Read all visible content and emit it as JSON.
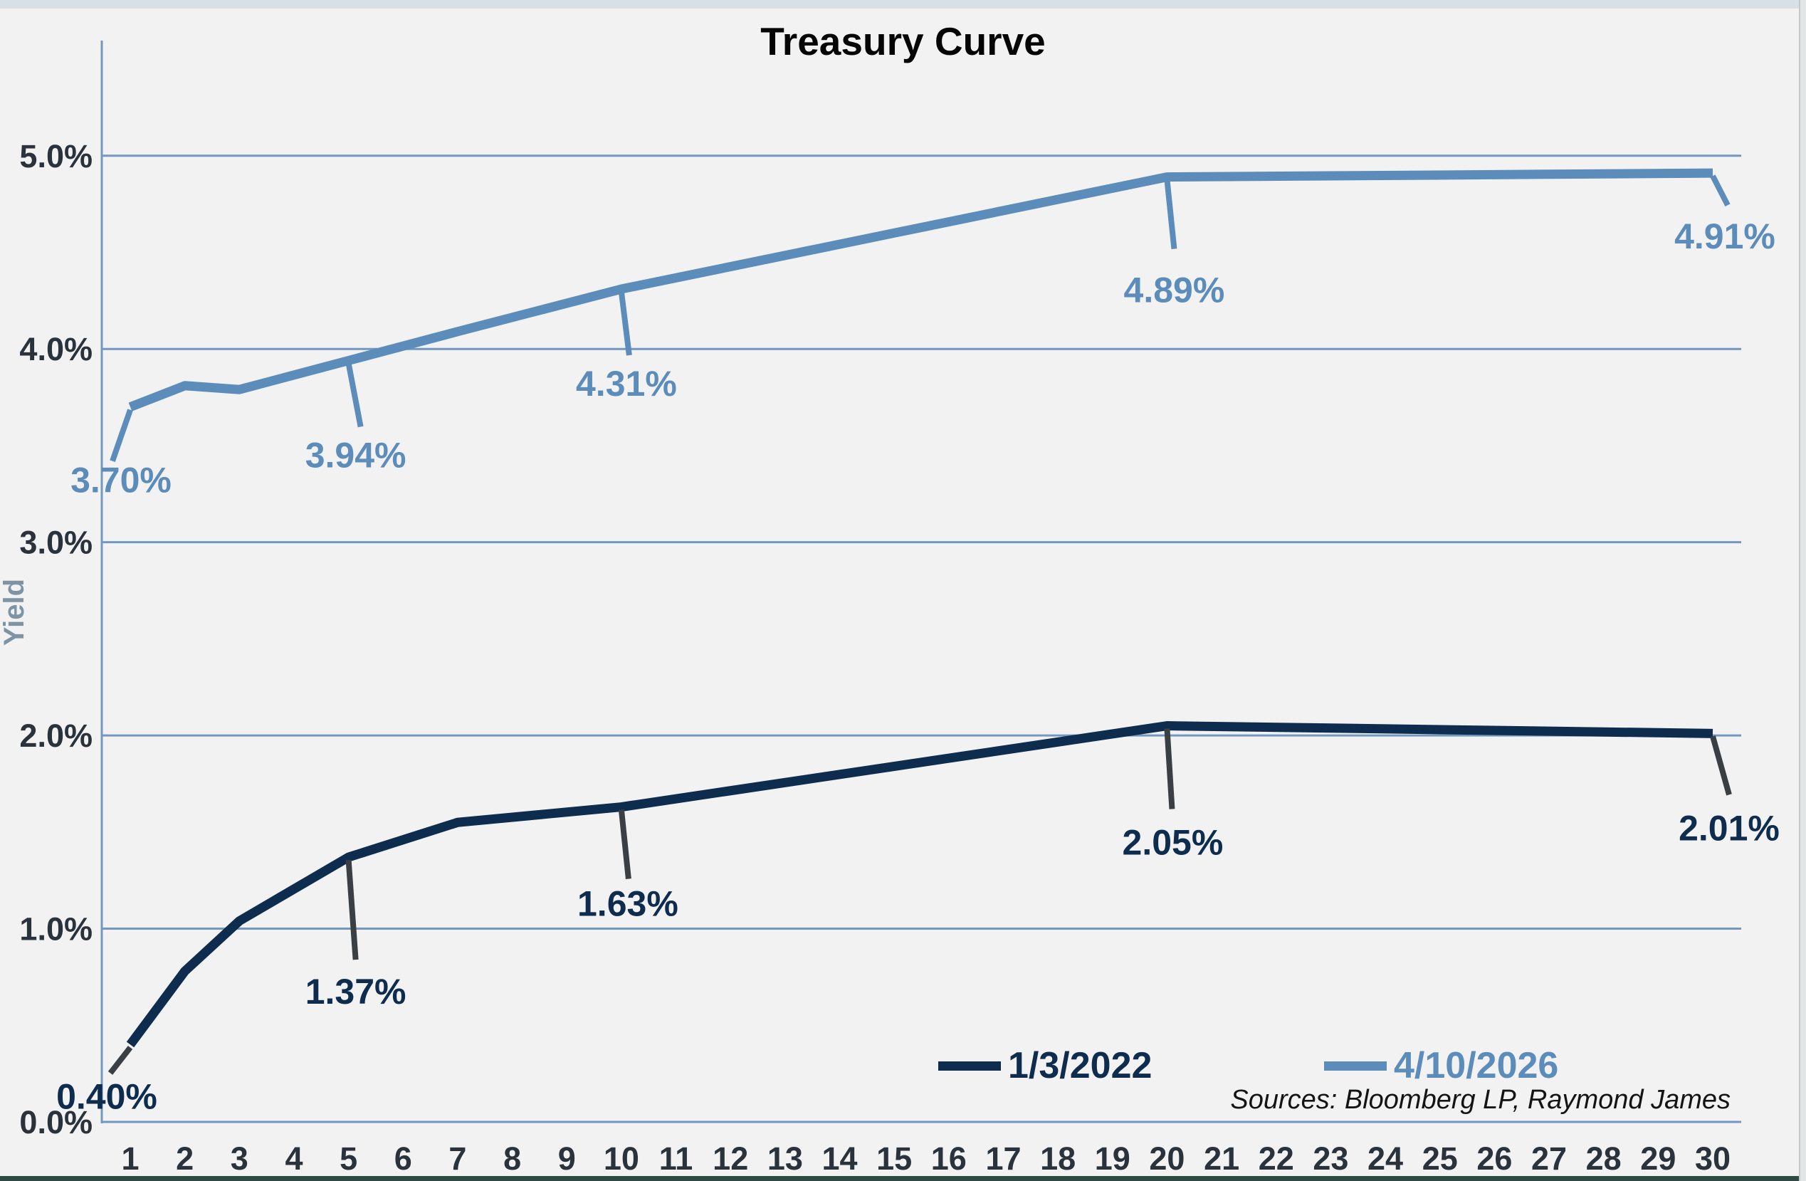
{
  "title": "Treasury Curve",
  "y_axis": {
    "label": "Yield",
    "ticks": [
      {
        "v": 0,
        "label": "0.0%"
      },
      {
        "v": 1,
        "label": "1.0%"
      },
      {
        "v": 2,
        "label": "2.0%"
      },
      {
        "v": 3,
        "label": "3.0%"
      },
      {
        "v": 4,
        "label": "4.0%"
      },
      {
        "v": 5,
        "label": "5.0%"
      }
    ]
  },
  "x_axis": {
    "ticks": [
      "1",
      "2",
      "3",
      "4",
      "5",
      "6",
      "7",
      "8",
      "9",
      "10",
      "11",
      "12",
      "13",
      "14",
      "15",
      "16",
      "17",
      "18",
      "19",
      "20",
      "21",
      "22",
      "23",
      "24",
      "25",
      "26",
      "27",
      "28",
      "29",
      "30"
    ]
  },
  "legend": [
    {
      "label": "1/3/2022",
      "color": "#0e2c4e"
    },
    {
      "label": "4/10/2026",
      "color": "#5b8cba"
    }
  ],
  "sources": "Sources: Bloomberg LP, Raymond James",
  "colors": {
    "background": "#f2f2f2",
    "gridline": "#7298c0",
    "axis": "#7298c0",
    "tick_text": "#2a333c",
    "dark_series": "#0e2c4e",
    "blue_series": "#5b8cba",
    "dark_leader": "#3a3f44"
  },
  "chart_data": {
    "type": "line",
    "title": "Treasury Curve",
    "xlabel": "",
    "ylabel": "Yield",
    "x": [
      1,
      2,
      3,
      5,
      7,
      10,
      20,
      30
    ],
    "xlim": [
      1,
      30
    ],
    "ylim": [
      0,
      5.5
    ],
    "grid": "horizontal",
    "legend_position": "bottom-right",
    "series": [
      {
        "name": "1/3/2022",
        "color": "#0e2c4e",
        "values": [
          0.4,
          0.78,
          1.04,
          1.37,
          1.55,
          1.63,
          2.05,
          2.01
        ],
        "annotations": [
          {
            "x": 1,
            "text": "0.40%"
          },
          {
            "x": 5,
            "text": "1.37%"
          },
          {
            "x": 10,
            "text": "1.63%"
          },
          {
            "x": 20,
            "text": "2.05%"
          },
          {
            "x": 30,
            "text": "2.01%"
          }
        ]
      },
      {
        "name": "4/10/2026",
        "color": "#5b8cba",
        "values": [
          3.7,
          3.81,
          3.79,
          3.94,
          4.09,
          4.31,
          4.89,
          4.91
        ],
        "annotations": [
          {
            "x": 1,
            "text": "3.70%"
          },
          {
            "x": 5,
            "text": "3.94%"
          },
          {
            "x": 10,
            "text": "4.31%"
          },
          {
            "x": 20,
            "text": "4.89%"
          },
          {
            "x": 30,
            "text": "4.91%"
          }
        ]
      }
    ]
  }
}
